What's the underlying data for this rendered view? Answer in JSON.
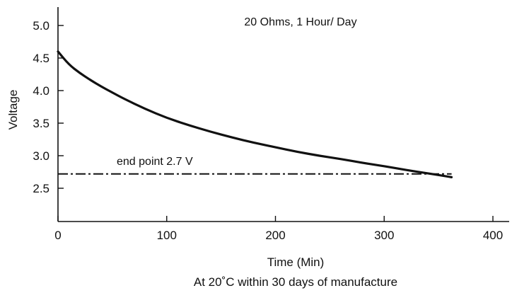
{
  "chart_data": {
    "type": "line",
    "title": "",
    "xlabel": "Time (Min)",
    "ylabel": "Voltage",
    "subtitle_below": "At 20˚C within 30 days of manufacture",
    "condition_label": "20 Ohms, 1 Hour/ Day",
    "xlim": [
      0,
      410
    ],
    "ylim": [
      2.0,
      5.3
    ],
    "x_ticks": [
      0,
      100,
      200,
      300,
      400
    ],
    "x_tick_labels": [
      "0",
      "100",
      "200",
      "300",
      "400"
    ],
    "y_ticks": [
      2.5,
      3.0,
      3.5,
      4.0,
      4.5,
      5.0
    ],
    "y_tick_labels": [
      "2.5",
      "3.0",
      "3.5",
      "4.0",
      "4.5",
      "5.0"
    ],
    "grid": false,
    "series": [
      {
        "values_x": [
          0,
          10,
          20,
          30,
          40,
          50,
          60,
          80,
          100,
          120,
          140,
          160,
          180,
          200,
          220,
          240,
          260,
          280,
          300,
          320,
          340,
          362
        ],
        "values_y": [
          4.6,
          4.4,
          4.27,
          4.16,
          4.06,
          3.97,
          3.88,
          3.72,
          3.58,
          3.47,
          3.37,
          3.28,
          3.2,
          3.13,
          3.06,
          3.0,
          2.95,
          2.89,
          2.84,
          2.78,
          2.73,
          2.67
        ],
        "color": "#111111",
        "style": "solid"
      }
    ],
    "reference_lines": [
      {
        "y": 2.72,
        "x_range": [
          0,
          362
        ],
        "label": "end point 2.7 V",
        "style": "dash-dot",
        "color": "#111111"
      }
    ]
  }
}
